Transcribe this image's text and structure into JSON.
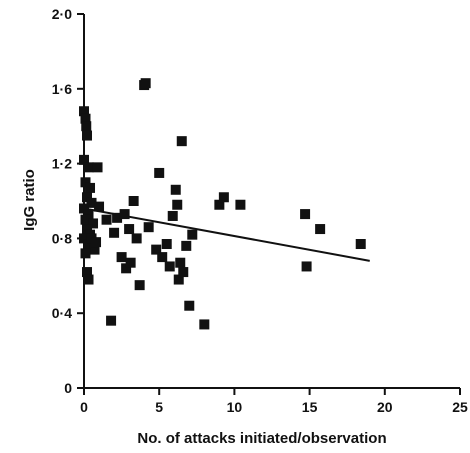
{
  "chart_data": {
    "type": "scatter",
    "title": "",
    "xlabel": "No. of attacks initiated/observation",
    "ylabel": "IgG ratio",
    "xlim": [
      0,
      25
    ],
    "ylim": [
      0,
      2.0
    ],
    "x_ticks": [
      0,
      5,
      10,
      15,
      20,
      25
    ],
    "y_ticks": [
      0,
      0.4,
      0.8,
      1.2,
      1.6,
      2.0
    ],
    "x_tick_labels": [
      "0",
      "5",
      "10",
      "15",
      "20",
      "25"
    ],
    "y_tick_labels": [
      "0",
      "0·4",
      "0·8",
      "1·2",
      "1·6",
      "2·0"
    ],
    "grid": false,
    "marker": "filled-square",
    "marker_color": "#111111",
    "trendline": {
      "x": [
        0,
        19
      ],
      "y": [
        0.96,
        0.68
      ]
    },
    "points": [
      {
        "x": 0.0,
        "y": 1.48
      },
      {
        "x": 0.1,
        "y": 1.44
      },
      {
        "x": 0.15,
        "y": 1.4
      },
      {
        "x": 0.2,
        "y": 1.35
      },
      {
        "x": 0.0,
        "y": 1.22
      },
      {
        "x": 0.3,
        "y": 1.18
      },
      {
        "x": 0.1,
        "y": 1.1
      },
      {
        "x": 0.4,
        "y": 1.07
      },
      {
        "x": 0.2,
        "y": 1.02
      },
      {
        "x": 0.5,
        "y": 0.99
      },
      {
        "x": 0.0,
        "y": 0.96
      },
      {
        "x": 0.3,
        "y": 0.93
      },
      {
        "x": 0.1,
        "y": 0.9
      },
      {
        "x": 0.6,
        "y": 0.88
      },
      {
        "x": 0.2,
        "y": 0.85
      },
      {
        "x": 0.4,
        "y": 0.82
      },
      {
        "x": 0.0,
        "y": 0.8
      },
      {
        "x": 0.3,
        "y": 0.77
      },
      {
        "x": 0.7,
        "y": 0.74
      },
      {
        "x": 0.1,
        "y": 0.72
      },
      {
        "x": 0.5,
        "y": 0.8
      },
      {
        "x": 0.2,
        "y": 0.62
      },
      {
        "x": 0.3,
        "y": 0.58
      },
      {
        "x": 0.9,
        "y": 1.18
      },
      {
        "x": 1.0,
        "y": 0.97
      },
      {
        "x": 0.8,
        "y": 0.78
      },
      {
        "x": 1.5,
        "y": 0.9
      },
      {
        "x": 1.8,
        "y": 0.36
      },
      {
        "x": 2.0,
        "y": 0.83
      },
      {
        "x": 2.2,
        "y": 0.91
      },
      {
        "x": 2.5,
        "y": 0.7
      },
      {
        "x": 2.7,
        "y": 0.93
      },
      {
        "x": 2.8,
        "y": 0.64
      },
      {
        "x": 3.0,
        "y": 0.85
      },
      {
        "x": 3.1,
        "y": 0.67
      },
      {
        "x": 3.3,
        "y": 1.0
      },
      {
        "x": 3.5,
        "y": 0.8
      },
      {
        "x": 3.7,
        "y": 0.55
      },
      {
        "x": 4.0,
        "y": 1.62
      },
      {
        "x": 4.1,
        "y": 1.63
      },
      {
        "x": 4.3,
        "y": 0.86
      },
      {
        "x": 4.8,
        "y": 0.74
      },
      {
        "x": 5.0,
        "y": 1.15
      },
      {
        "x": 5.2,
        "y": 0.7
      },
      {
        "x": 5.5,
        "y": 0.77
      },
      {
        "x": 5.7,
        "y": 0.65
      },
      {
        "x": 5.9,
        "y": 0.92
      },
      {
        "x": 6.1,
        "y": 1.06
      },
      {
        "x": 6.2,
        "y": 0.98
      },
      {
        "x": 6.3,
        "y": 0.58
      },
      {
        "x": 6.4,
        "y": 0.67
      },
      {
        "x": 6.5,
        "y": 1.32
      },
      {
        "x": 6.6,
        "y": 0.62
      },
      {
        "x": 6.8,
        "y": 0.76
      },
      {
        "x": 7.0,
        "y": 0.44
      },
      {
        "x": 7.2,
        "y": 0.82
      },
      {
        "x": 8.0,
        "y": 0.34
      },
      {
        "x": 9.0,
        "y": 0.98
      },
      {
        "x": 9.3,
        "y": 1.02
      },
      {
        "x": 10.4,
        "y": 0.98
      },
      {
        "x": 14.7,
        "y": 0.93
      },
      {
        "x": 14.8,
        "y": 0.65
      },
      {
        "x": 15.7,
        "y": 0.85
      },
      {
        "x": 18.4,
        "y": 0.77
      }
    ]
  }
}
